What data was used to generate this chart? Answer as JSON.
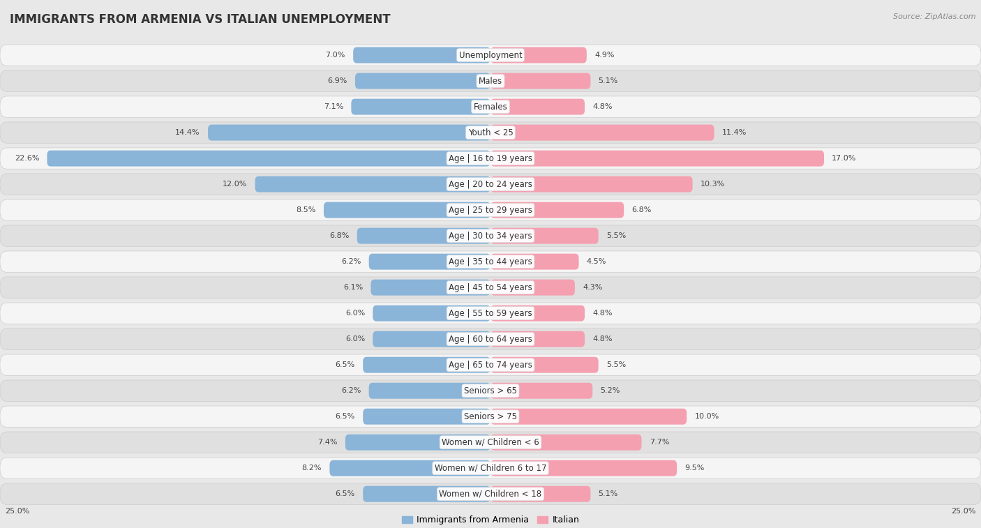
{
  "title": "IMMIGRANTS FROM ARMENIA VS ITALIAN UNEMPLOYMENT",
  "source": "Source: ZipAtlas.com",
  "categories": [
    "Unemployment",
    "Males",
    "Females",
    "Youth < 25",
    "Age | 16 to 19 years",
    "Age | 20 to 24 years",
    "Age | 25 to 29 years",
    "Age | 30 to 34 years",
    "Age | 35 to 44 years",
    "Age | 45 to 54 years",
    "Age | 55 to 59 years",
    "Age | 60 to 64 years",
    "Age | 65 to 74 years",
    "Seniors > 65",
    "Seniors > 75",
    "Women w/ Children < 6",
    "Women w/ Children 6 to 17",
    "Women w/ Children < 18"
  ],
  "left_values": [
    7.0,
    6.9,
    7.1,
    14.4,
    22.6,
    12.0,
    8.5,
    6.8,
    6.2,
    6.1,
    6.0,
    6.0,
    6.5,
    6.2,
    6.5,
    7.4,
    8.2,
    6.5
  ],
  "right_values": [
    4.9,
    5.1,
    4.8,
    11.4,
    17.0,
    10.3,
    6.8,
    5.5,
    4.5,
    4.3,
    4.8,
    4.8,
    5.5,
    5.2,
    10.0,
    7.7,
    9.5,
    5.1
  ],
  "left_color": "#8ab4d8",
  "right_color": "#f4a0b0",
  "axis_max": 25.0,
  "legend_left": "Immigrants from Armenia",
  "legend_right": "Italian",
  "bg_color": "#e8e8e8",
  "row_white_color": "#f5f5f5",
  "row_gray_color": "#e0e0e0",
  "title_fontsize": 12,
  "label_fontsize": 8.5,
  "value_fontsize": 8.0,
  "source_fontsize": 8.0
}
